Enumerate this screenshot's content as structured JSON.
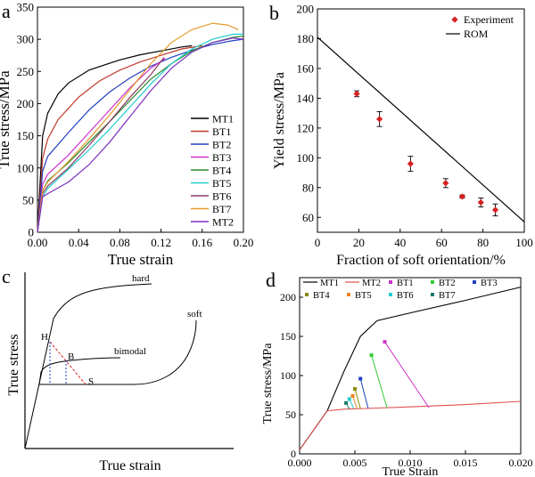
{
  "chart_data": [
    {
      "panel": "a",
      "type": "line",
      "xlabel": "True strain",
      "ylabel": "True stress/MPa",
      "xlim": [
        0.0,
        0.2
      ],
      "ylim": [
        0,
        350
      ],
      "xticks": [
        "0.00",
        "0.04",
        "0.08",
        "0.12",
        "0.16",
        "0.20"
      ],
      "yticks": [
        "0",
        "50",
        "100",
        "150",
        "200",
        "250",
        "300",
        "350"
      ],
      "legend": "inside right",
      "series": [
        {
          "name": "MT1",
          "color": "#000000",
          "x": [
            0,
            0.005,
            0.01,
            0.02,
            0.03,
            0.05,
            0.08,
            0.1,
            0.12,
            0.14,
            0.15
          ],
          "y": [
            0,
            150,
            185,
            215,
            232,
            252,
            268,
            276,
            282,
            288,
            290
          ]
        },
        {
          "name": "BT1",
          "color": "#c0392b",
          "x": [
            0,
            0.005,
            0.01,
            0.02,
            0.04,
            0.06,
            0.08,
            0.1,
            0.12,
            0.14,
            0.16
          ],
          "y": [
            0,
            115,
            145,
            175,
            210,
            235,
            252,
            265,
            275,
            285,
            290
          ]
        },
        {
          "name": "BT2",
          "color": "#1f3fbf",
          "x": [
            0,
            0.005,
            0.01,
            0.03,
            0.05,
            0.07,
            0.09,
            0.11,
            0.13,
            0.15,
            0.17,
            0.19,
            0.2
          ],
          "y": [
            0,
            95,
            118,
            155,
            190,
            218,
            240,
            258,
            272,
            283,
            292,
            298,
            300
          ]
        },
        {
          "name": "BT3",
          "color": "#cc33cc",
          "x": [
            0,
            0.005,
            0.01,
            0.03,
            0.05,
            0.07,
            0.09,
            0.11,
            0.124
          ],
          "y": [
            0,
            75,
            90,
            120,
            155,
            190,
            225,
            255,
            270
          ]
        },
        {
          "name": "BT4",
          "color": "#2e8b2e",
          "x": [
            0,
            0.005,
            0.01,
            0.03,
            0.05,
            0.07,
            0.09,
            0.11,
            0.13,
            0.15,
            0.17,
            0.19,
            0.2
          ],
          "y": [
            0,
            65,
            80,
            108,
            140,
            172,
            205,
            238,
            262,
            282,
            295,
            303,
            305
          ]
        },
        {
          "name": "BT5",
          "color": "#22cccc",
          "x": [
            0,
            0.005,
            0.01,
            0.03,
            0.05,
            0.07,
            0.09,
            0.11,
            0.13,
            0.15,
            0.17,
            0.19,
            0.2
          ],
          "y": [
            0,
            55,
            68,
            98,
            128,
            160,
            195,
            230,
            262,
            285,
            300,
            308,
            308
          ]
        },
        {
          "name": "BT6",
          "color": "#8b3a62",
          "x": [
            0,
            0.005,
            0.01,
            0.03,
            0.05,
            0.07,
            0.09,
            0.11,
            0.123
          ],
          "y": [
            0,
            60,
            72,
            100,
            135,
            172,
            210,
            245,
            272
          ]
        },
        {
          "name": "BT7",
          "color": "#e39a2a",
          "x": [
            0,
            0.005,
            0.01,
            0.03,
            0.05,
            0.07,
            0.09,
            0.11,
            0.13,
            0.15,
            0.17,
            0.185,
            0.195
          ],
          "y": [
            0,
            65,
            78,
            110,
            145,
            182,
            222,
            262,
            295,
            315,
            325,
            322,
            315
          ]
        },
        {
          "name": "MT2",
          "color": "#7b2fbe",
          "x": [
            0,
            0.005,
            0.01,
            0.03,
            0.05,
            0.07,
            0.09,
            0.11,
            0.13,
            0.15,
            0.17,
            0.19,
            0.2
          ],
          "y": [
            0,
            55,
            60,
            78,
            105,
            140,
            180,
            220,
            255,
            280,
            295,
            302,
            300
          ]
        }
      ]
    },
    {
      "panel": "b",
      "type": "scatter",
      "xlabel": "Fraction of soft orientation/%",
      "ylabel": "Yield stress/MPa",
      "xlim": [
        0,
        100
      ],
      "ylim": [
        50,
        200
      ],
      "xticks": [
        "0",
        "20",
        "40",
        "60",
        "80",
        "100"
      ],
      "yticks": [
        "60",
        "80",
        "100",
        "120",
        "140",
        "160",
        "180",
        "200"
      ],
      "legend": "top-right",
      "series": [
        {
          "name": "Experiment",
          "color": "#d62020",
          "marker": "diamond",
          "x": [
            19,
            30,
            45,
            62,
            70,
            79,
            86
          ],
          "y": [
            143,
            126,
            96,
            83,
            74,
            70,
            65
          ],
          "err": [
            2,
            5,
            5,
            3,
            1,
            3,
            4
          ]
        },
        {
          "name": "ROM",
          "color": "#000000",
          "type": "line",
          "x": [
            0,
            100
          ],
          "y": [
            181,
            57
          ]
        }
      ]
    },
    {
      "panel": "c",
      "type": "line",
      "xlabel": "True strain",
      "ylabel": "True stress",
      "curve_labels": [
        "hard",
        "soft",
        "bimodal",
        "H",
        "B",
        "S"
      ]
    },
    {
      "panel": "d",
      "type": "line",
      "xlabel": "True Strain",
      "ylabel": "True stress/MPa",
      "xlim": [
        0.0,
        0.02
      ],
      "ylim": [
        0,
        225
      ],
      "xticks": [
        "0.000",
        "0.005",
        "0.010",
        "0.015",
        "0.020"
      ],
      "yticks": [
        "0",
        "50",
        "100",
        "150",
        "200"
      ],
      "legend": "top, 2 rows",
      "series": [
        {
          "name": "MT1",
          "color": "#000000",
          "x": [
            0,
            0.0025,
            0.004,
            0.0055,
            0.007,
            0.01,
            0.015,
            0.02
          ],
          "y": [
            5,
            55,
            105,
            150,
            170,
            180,
            196,
            213
          ]
        },
        {
          "name": "MT2",
          "color": "#e05050",
          "x": [
            0,
            0.0025,
            0.004,
            0.006,
            0.01,
            0.015,
            0.02
          ],
          "y": [
            5,
            55,
            57,
            58,
            60,
            63,
            67
          ]
        },
        {
          "name": "BT1",
          "color": "#cc33cc",
          "x": [
            0.0077,
            0.0117
          ],
          "y": [
            143,
            59
          ]
        },
        {
          "name": "BT2",
          "color": "#33cc33",
          "x": [
            0.0065,
            0.0079
          ],
          "y": [
            126,
            59
          ]
        },
        {
          "name": "BT3",
          "color": "#1f3fbf",
          "x": [
            0.0055,
            0.0062
          ],
          "y": [
            96,
            58
          ]
        },
        {
          "name": "BT4",
          "color": "#8b8b00",
          "x": [
            0.005,
            0.0055
          ],
          "y": [
            83,
            58
          ]
        },
        {
          "name": "BT5",
          "color": "#f08020",
          "x": [
            0.0048,
            0.0052
          ],
          "y": [
            74,
            58
          ]
        },
        {
          "name": "BT6",
          "color": "#22cccc",
          "x": [
            0.0045,
            0.0049
          ],
          "y": [
            70,
            58
          ]
        },
        {
          "name": "BT7",
          "color": "#1a7a6a",
          "x": [
            0.0042,
            0.0045
          ],
          "y": [
            65,
            57
          ]
        }
      ]
    }
  ]
}
